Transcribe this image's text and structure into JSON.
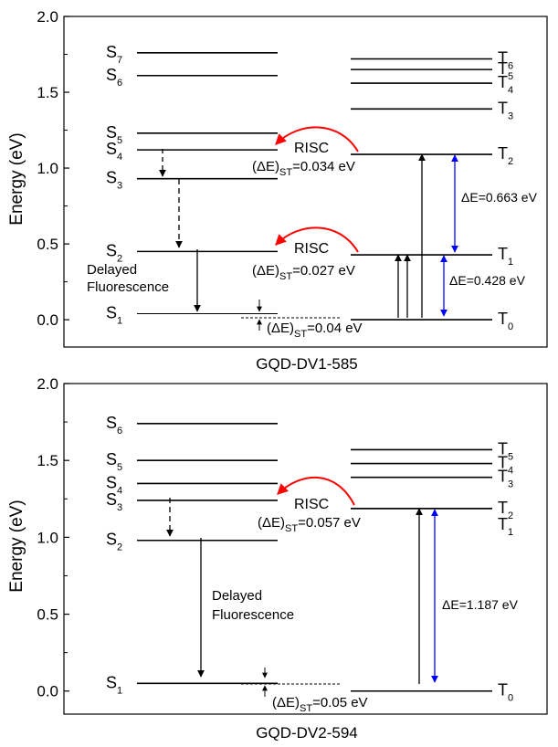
{
  "colors": {
    "risc_arrow": "#ff0000",
    "gap_arrow": "#0000ff",
    "line": "#000000"
  },
  "panels": [
    {
      "title": "GQD-DV1-585",
      "y_axis_label": "Energy (eV)",
      "y_ticks": [
        "0.0",
        "0.5",
        "1.0",
        "1.5",
        "2.0"
      ],
      "ylim": [
        -0.18,
        2.0
      ],
      "singlets": [
        {
          "main": "S",
          "sub": "1",
          "energy": 0.04
        },
        {
          "main": "S",
          "sub": "2",
          "energy": 0.45
        },
        {
          "main": "S",
          "sub": "3",
          "energy": 0.93
        },
        {
          "main": "S",
          "sub": "4",
          "energy": 1.12
        },
        {
          "main": "S",
          "sub": "5",
          "energy": 1.23
        },
        {
          "main": "S",
          "sub": "6",
          "energy": 1.61
        },
        {
          "main": "S",
          "sub": "7",
          "energy": 1.76
        }
      ],
      "triplets": [
        {
          "main": "T",
          "sub": "0",
          "energy": 0.0
        },
        {
          "main": "T",
          "sub": "1",
          "energy": 0.428
        },
        {
          "main": "T",
          "sub": "2",
          "energy": 1.09
        },
        {
          "main": "T",
          "sub": "3",
          "energy": 1.39
        },
        {
          "main": "T",
          "sub": "4",
          "energy": 1.56
        },
        {
          "main": "T",
          "sub": "5",
          "energy": 1.65
        },
        {
          "main": "T",
          "sub": "6",
          "energy": 1.72
        }
      ],
      "risc": [
        {
          "label": "RISC",
          "de_prefix": "(ΔE)",
          "de_sub": "ST",
          "de_value": "=0.034 eV",
          "from_energy": 1.09,
          "to_energy": 1.12
        },
        {
          "label": "RISC",
          "de_prefix": "(ΔE)",
          "de_sub": "ST",
          "de_value": "=0.027 eV",
          "from_energy": 0.428,
          "to_energy": 0.45
        }
      ],
      "gaps": [
        {
          "label": "ΔE=0.663 eV",
          "from_energy": 0.428,
          "to_energy": 1.09
        },
        {
          "label": "ΔE=0.428 eV",
          "from_energy": 0.0,
          "to_energy": 0.428
        }
      ],
      "bottom_gap": {
        "de_prefix": "(ΔE)",
        "de_sub": "ST",
        "de_value": "=0.04 eV"
      },
      "fluorescence_label_1": "Delayed",
      "fluorescence_label_2": "Fluorescence"
    },
    {
      "title": "GQD-DV2-594",
      "y_axis_label": "Energy (eV)",
      "y_ticks": [
        "0.0",
        "0.5",
        "1.0",
        "1.5",
        "2.0"
      ],
      "ylim": [
        -0.15,
        2.0
      ],
      "singlets": [
        {
          "main": "S",
          "sub": "1",
          "energy": 0.05
        },
        {
          "main": "S",
          "sub": "2",
          "energy": 0.98
        },
        {
          "main": "S",
          "sub": "3",
          "energy": 1.24
        },
        {
          "main": "S",
          "sub": "4",
          "energy": 1.35
        },
        {
          "main": "S",
          "sub": "5",
          "energy": 1.5
        },
        {
          "main": "S",
          "sub": "6",
          "energy": 1.74
        }
      ],
      "triplets": [
        {
          "main": "T",
          "sub": "0",
          "energy": 0.0
        },
        {
          "main": "T",
          "sub": "1",
          "energy": 1.187
        },
        {
          "main": "T",
          "sub": "2",
          "energy": 1.187
        },
        {
          "main": "T",
          "sub": "3",
          "energy": 1.39
        },
        {
          "main": "T",
          "sub": "4",
          "energy": 1.48
        },
        {
          "main": "T",
          "sub": "5",
          "energy": 1.57
        }
      ],
      "risc": [
        {
          "label": "RISC",
          "de_prefix": "(ΔE)",
          "de_sub": "ST",
          "de_value": "=0.057 eV",
          "from_energy": 1.187,
          "to_energy": 1.24
        }
      ],
      "gaps": [
        {
          "label": "ΔE=1.187 eV",
          "from_energy": 0.0,
          "to_energy": 1.187
        }
      ],
      "bottom_gap": {
        "de_prefix": "(ΔE)",
        "de_sub": "ST",
        "de_value": "=0.05 eV"
      },
      "fluorescence_label_1": "Delayed",
      "fluorescence_label_2": "Fluorescence"
    }
  ]
}
